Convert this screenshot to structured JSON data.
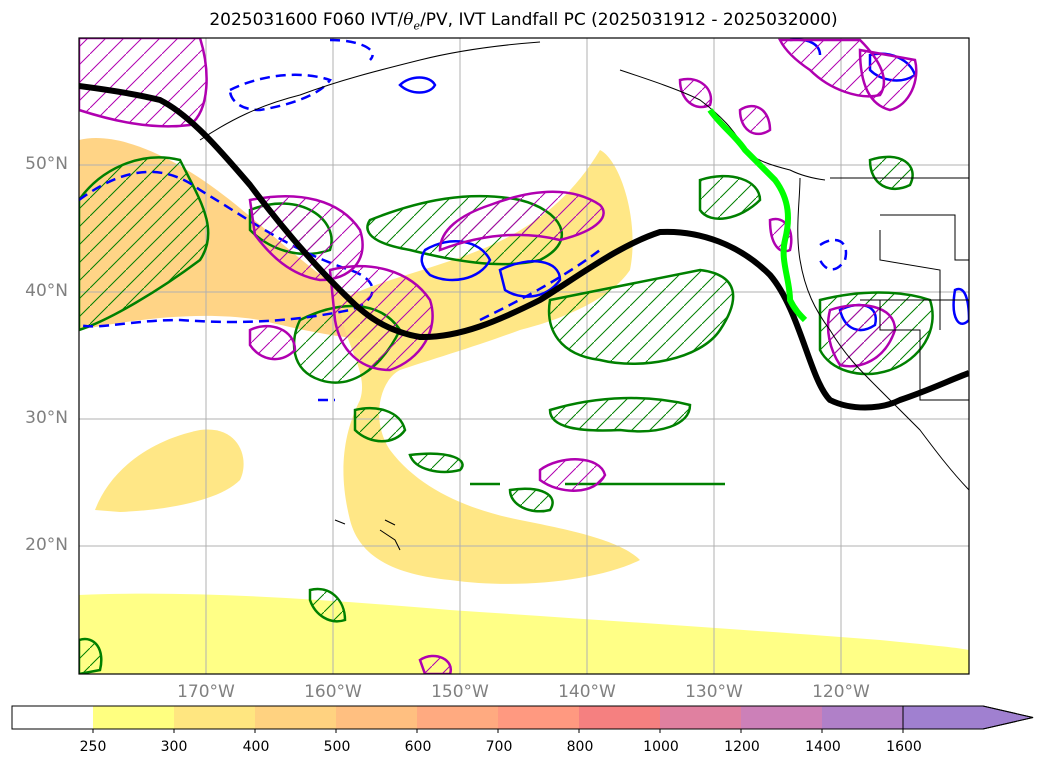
{
  "title": {
    "date": "2025031600",
    "text_before": " F060 IVT/",
    "theta": "θ",
    "sub": "e",
    "text_after": "/PV, IVT Landfall PC (2025031912 - 2025032000)"
  },
  "map": {
    "projection": "PlateCarree",
    "lon_range": [
      -180,
      -110
    ],
    "lat_range": [
      10,
      60
    ],
    "lat_labels": [
      "50°N",
      "40°N",
      "30°N",
      "20°N"
    ],
    "lon_labels": [
      "170°W",
      "160°W",
      "150°W",
      "140°W",
      "130°W",
      "120°W"
    ],
    "gridlines": true,
    "coastline_color": "#000000"
  },
  "legend": {
    "colorbar_labels": [
      "250",
      "300",
      "400",
      "500",
      "600",
      "700",
      "800",
      "1000",
      "1200",
      "1400",
      "1600"
    ],
    "colors": [
      "#ffffff",
      "#ffff80",
      "#ffe680",
      "#ffd280",
      "#ffbf80",
      "#ffaa80",
      "#ff9980",
      "#f58080",
      "#e080a0",
      "#cc80b8",
      "#b080c8",
      "#a080d0"
    ],
    "extend": "max"
  },
  "overlays": {
    "ivt_fill": "IVT filled contours",
    "steering_line_color": "#000000",
    "landfall_color": "#00ff00",
    "pv_color": "#b000b0",
    "theta_pos_color": "#008000",
    "theta_neg_color": "#0000ff"
  }
}
